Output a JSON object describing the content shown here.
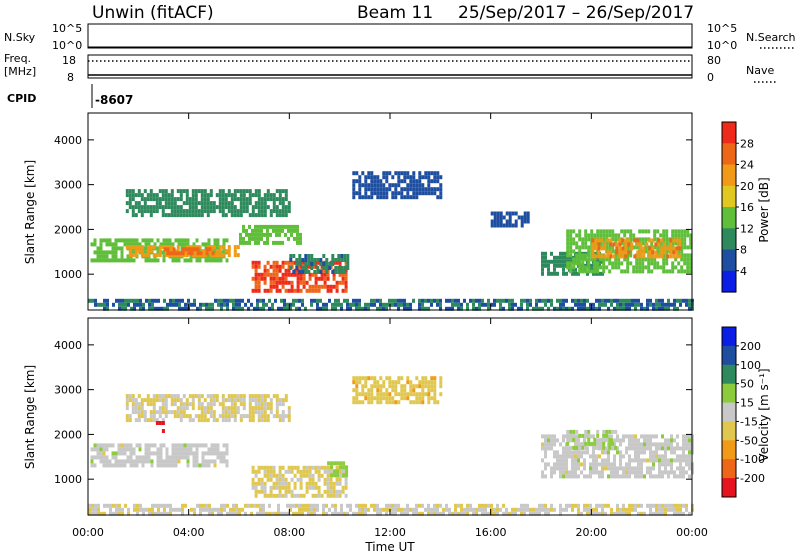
{
  "header": {
    "title": "Unwin (fitACF)",
    "beam": "Beam 11",
    "dates": "25/Sep/2017 – 26/Sep/2017"
  },
  "strips": {
    "nsky_label": "N.Sky",
    "nsky_ticks": [
      "10^5",
      "10^0"
    ],
    "nsearch_label": "N.Search",
    "nsearch_ticks": [
      "10^5",
      "10^0"
    ],
    "freq_label_line1": "Freq.",
    "freq_label_line2": "[MHz]",
    "freq_ticks": [
      "18",
      "8"
    ],
    "nave_label": "Nave",
    "nave_ticks": [
      "80",
      "0"
    ],
    "cpid_label": "CPID",
    "cpid_value": "-8607"
  },
  "colors": {
    "power": [
      "#0a1ee6",
      "#1e4ea0",
      "#2e8a5c",
      "#5fbf3a",
      "#e0c820",
      "#f09a18",
      "#ee6618",
      "#ee2a1a"
    ],
    "velocity": [
      "#e6141e",
      "#ee6618",
      "#f09a18",
      "#e0c850",
      "#c8c8c8",
      "#8ccc3c",
      "#2e8a5c",
      "#1e4ea0",
      "#0a1ee6"
    ]
  },
  "chart_data": [
    {
      "type": "heatmap",
      "name": "power",
      "ylabel": "Slant Range [km]",
      "ylim": [
        200,
        4600
      ],
      "yticks": [
        "1000",
        "2000",
        "3000",
        "4000"
      ],
      "colorbar_label": "Power [dB]",
      "colorbar_ticks": [
        "4",
        "8",
        "12",
        "16",
        "20",
        "24",
        "28"
      ],
      "colorbar_range": [
        0,
        32
      ],
      "regions": [
        {
          "t0": 0.1,
          "t1": 5.5,
          "r0": 1300,
          "r1": 1800,
          "value": 14
        },
        {
          "t0": 1.5,
          "t1": 6.0,
          "r0": 1450,
          "r1": 1650,
          "value": 22
        },
        {
          "t0": 3.0,
          "t1": 5.0,
          "r0": 1500,
          "r1": 1600,
          "value": 26
        },
        {
          "t0": 1.5,
          "t1": 8.0,
          "r0": 2300,
          "r1": 2900,
          "value": 10
        },
        {
          "t0": 6.0,
          "t1": 8.5,
          "r0": 1700,
          "r1": 2100,
          "value": 14
        },
        {
          "t0": 6.5,
          "t1": 10.3,
          "r0": 650,
          "r1": 1300,
          "value": 28
        },
        {
          "t0": 8.0,
          "t1": 10.3,
          "r0": 1050,
          "r1": 1450,
          "value": 9
        },
        {
          "t0": 10.5,
          "t1": 14.0,
          "r0": 2700,
          "r1": 3300,
          "value": 6
        },
        {
          "t0": 16.0,
          "t1": 17.5,
          "r0": 2100,
          "r1": 2400,
          "value": 6
        },
        {
          "t0": 18.0,
          "t1": 20.5,
          "r0": 1000,
          "r1": 1500,
          "value": 10
        },
        {
          "t0": 19.0,
          "t1": 24.0,
          "r0": 1100,
          "r1": 2000,
          "value": 14
        },
        {
          "t0": 20.0,
          "t1": 23.5,
          "r0": 1400,
          "r1": 1800,
          "value": 23
        },
        {
          "t0": 0.0,
          "t1": 24.0,
          "r0": 200,
          "r1": 450,
          "value": 8
        }
      ]
    },
    {
      "type": "heatmap",
      "name": "velocity",
      "ylabel": "Slant Range [km]",
      "ylim": [
        200,
        4600
      ],
      "yticks": [
        "1000",
        "2000",
        "3000",
        "4000"
      ],
      "colorbar_label": "Velocity [m s⁻¹]",
      "colorbar_ticks": [
        "200",
        "100",
        "50",
        "15",
        "-15",
        "-50",
        "-100",
        "-200"
      ],
      "colorbar_range": [
        -250,
        250
      ],
      "regions": [
        {
          "t0": 0.1,
          "t1": 5.5,
          "r0": 1300,
          "r1": 1800,
          "value": 0
        },
        {
          "t0": 1.5,
          "t1": 8.0,
          "r0": 2300,
          "r1": 2900,
          "value": -30
        },
        {
          "t0": 2.7,
          "t1": 3.0,
          "r0": 2100,
          "r1": 2300,
          "value": -220
        },
        {
          "t0": 6.5,
          "t1": 10.3,
          "r0": 650,
          "r1": 1300,
          "value": -40
        },
        {
          "t0": 9.5,
          "t1": 10.3,
          "r0": 1100,
          "r1": 1400,
          "value": 40
        },
        {
          "t0": 10.5,
          "t1": 14.0,
          "r0": 2700,
          "r1": 3300,
          "value": -60
        },
        {
          "t0": 18.0,
          "t1": 24.0,
          "r0": 1100,
          "r1": 2000,
          "value": 0
        },
        {
          "t0": 19.0,
          "t1": 21.0,
          "r0": 1700,
          "r1": 2100,
          "value": 30
        },
        {
          "t0": 0.0,
          "t1": 24.0,
          "r0": 200,
          "r1": 450,
          "value": -20
        }
      ]
    }
  ],
  "xaxis": {
    "label": "Time UT",
    "ticks": [
      "00:00",
      "04:00",
      "08:00",
      "12:00",
      "16:00",
      "20:00",
      "00:00"
    ],
    "range_hours": [
      0,
      24
    ]
  }
}
